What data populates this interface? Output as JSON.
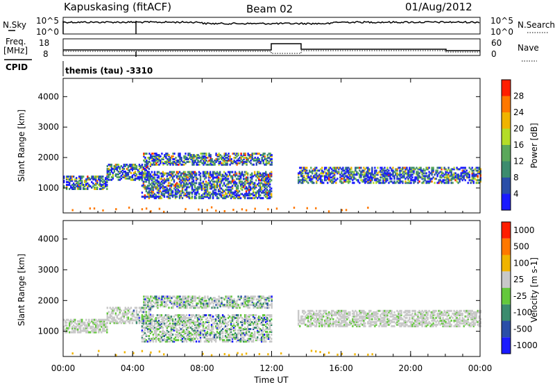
{
  "header": {
    "station": "Kapuskasing (fitACF)",
    "beam": "Beam 02",
    "date": "01/Aug/2012"
  },
  "top_panels": {
    "nsky_label": "N.Sky",
    "nsky_ticks": [
      "10^5",
      "10^0"
    ],
    "nsearch_label": "N.Search",
    "nsearch_ticks": [
      "10^5",
      "10^0"
    ],
    "freq_label": "Freq.",
    "freq_unit": "[MHz]",
    "freq_ticks": [
      "18",
      "8"
    ],
    "nave_label": "Nave",
    "nave_ticks": [
      "60",
      "0"
    ],
    "cpid_label": "CPID",
    "cpid_text": "themis (tau) -3310"
  },
  "chart_data": [
    {
      "type": "heatmap",
      "name": "power-panel",
      "ylabel": "Slant Range [km]",
      "yticks": [
        1000,
        2000,
        3000,
        4000
      ],
      "ylim": [
        180,
        4600
      ],
      "xlim": [
        0,
        24
      ],
      "colorbar_label": "Power [dB]",
      "colorbar_ticks": [
        "28",
        "24",
        "20",
        "16",
        "12",
        "8",
        "4"
      ],
      "colors": [
        "#1a1aff",
        "#2a4ea8",
        "#3c8c6e",
        "#5aa85a",
        "#b4dc28",
        "#f0b400",
        "#ff7800",
        "#ff1e00"
      ],
      "bands": [
        {
          "t0": 0.0,
          "t1": 2.5,
          "r0": 1000,
          "r1": 1450
        },
        {
          "t0": 2.5,
          "t1": 5.0,
          "r0": 1300,
          "r1": 1800
        },
        {
          "t0": 4.6,
          "t1": 12.0,
          "r0": 1800,
          "r1": 2200
        },
        {
          "t0": 4.5,
          "t1": 12.0,
          "r0": 700,
          "r1": 1600
        },
        {
          "t0": 13.5,
          "t1": 24.0,
          "r0": 1200,
          "r1": 1700
        }
      ]
    },
    {
      "type": "heatmap",
      "name": "velocity-panel",
      "ylabel": "Slant Range [km]",
      "yticks": [
        1000,
        2000,
        3000,
        4000
      ],
      "ylim": [
        180,
        4600
      ],
      "xlim": [
        0,
        24
      ],
      "colorbar_label": "Velocity [m s-1]",
      "colorbar_ticks": [
        "1000",
        "500",
        "100",
        "25",
        "-25",
        "-100",
        "-500",
        "-1000"
      ],
      "colors": [
        "#1a1aff",
        "#2a4ea8",
        "#3c8c6e",
        "#64c83c",
        "#c8c8c8",
        "#f0b400",
        "#ff7800",
        "#ff1e00"
      ],
      "xticks": [
        "00:00",
        "04:00",
        "08:00",
        "12:00",
        "16:00",
        "20:00",
        "00:00"
      ],
      "xlabel": "Time UT"
    }
  ]
}
